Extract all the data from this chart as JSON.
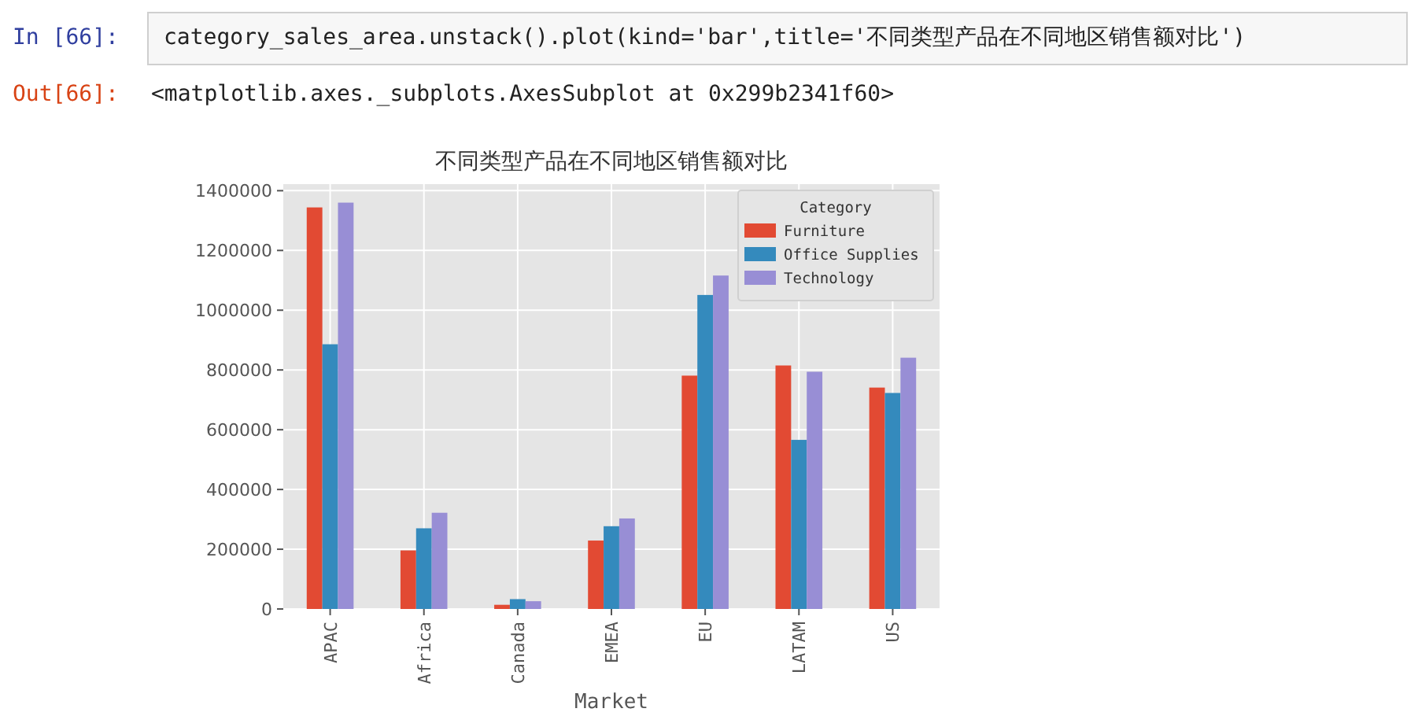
{
  "chart_data": {
    "type": "bar",
    "title": "不同类型产品在不同地区销售额对比",
    "xlabel": "Market",
    "legend_title": "Category",
    "annotations": [
      "In  [66]:",
      "category_sales_area.unstack().plot(kind='bar',title='不同类型产品在不同地区销售额对比')",
      "Out[66]:",
      "<matplotlib.axes._subplots.AxesSubplot at 0x299b2341f60>"
    ],
    "categories": [
      "APAC",
      "Africa",
      "Canada",
      "EMEA",
      "EU",
      "LATAM",
      "US"
    ],
    "series": [
      {
        "name": "Furniture",
        "color": "#e24a33",
        "values": [
          1344000,
          196000,
          14000,
          229000,
          781000,
          815000,
          741000
        ]
      },
      {
        "name": "Office Supplies",
        "color": "#348abd",
        "values": [
          886000,
          270000,
          33000,
          277000,
          1051000,
          566000,
          723000
        ]
      },
      {
        "name": "Technology",
        "color": "#988ed5",
        "values": [
          1360000,
          322000,
          26000,
          303000,
          1116000,
          794000,
          841000
        ]
      }
    ],
    "ylim": [
      0,
      1422000
    ],
    "yticks": [
      0,
      200000,
      400000,
      600000,
      800000,
      1000000,
      1200000,
      1400000
    ],
    "grid": true,
    "legend": "top right"
  }
}
